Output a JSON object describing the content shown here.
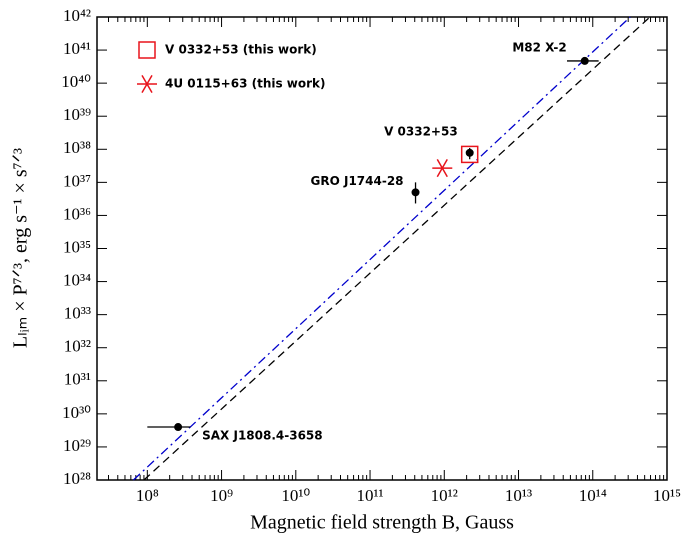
{
  "chart_data": {
    "type": "scatter",
    "x_label": "Magnetic field strength B, Gauss",
    "y_label": "Lₗᵢₘ × P⁷ᐟ³, erg s⁻¹ × s⁷ᐟ³",
    "log_x": true,
    "log_y": true,
    "xlim": [
      21000000.0,
      1000000000000000.0
    ],
    "ylim": [
      1e+28,
      1e+42
    ],
    "xticks": [
      {
        "value": 100000000.0,
        "label": "10⁸"
      },
      {
        "value": 1000000000.0,
        "label": "10⁹"
      },
      {
        "value": 10000000000.0,
        "label": "10¹⁰"
      },
      {
        "value": 100000000000.0,
        "label": "10¹¹"
      },
      {
        "value": 1000000000000.0,
        "label": "10¹²"
      },
      {
        "value": 10000000000000.0,
        "label": "10¹³"
      },
      {
        "value": 100000000000000.0,
        "label": "10¹⁴"
      },
      {
        "value": 1000000000000000.0,
        "label": "10¹⁵"
      }
    ],
    "yticks": [
      {
        "value": 1e+28,
        "label": "10²⁸"
      },
      {
        "value": 1e+29,
        "label": "10²⁹"
      },
      {
        "value": 1e+30,
        "label": "10³⁰"
      },
      {
        "value": 1e+31,
        "label": "10³¹"
      },
      {
        "value": 1e+32,
        "label": "10³²"
      },
      {
        "value": 1e+33,
        "label": "10³³"
      },
      {
        "value": 1e+34,
        "label": "10³⁴"
      },
      {
        "value": 1e+35,
        "label": "10³⁵"
      },
      {
        "value": 1e+36,
        "label": "10³⁶"
      },
      {
        "value": 1e+37,
        "label": "10³⁷"
      },
      {
        "value": 1e+38,
        "label": "10³⁸"
      },
      {
        "value": 1e+39,
        "label": "10³⁹"
      },
      {
        "value": 1e+40,
        "label": "10⁴⁰"
      },
      {
        "value": 1e+41,
        "label": "10⁴¹"
      },
      {
        "value": 1e+42,
        "label": "10⁴²"
      }
    ],
    "legend": "upper left",
    "points": [
      {
        "label": "SAX J1808.4-3658",
        "color": "#000000",
        "x": 260000000.0,
        "y": 4e+29,
        "x_low": 100000000.0,
        "x_high": 380000000.0
      },
      {
        "label": "GRO J1744-28",
        "color": "#000000",
        "x": 410000000000.0,
        "y": 5e+36,
        "y_low": 2.3e+36,
        "y_high": 1e+37
      },
      {
        "label": "V 0332+53",
        "color": "#000000",
        "x": 2200000000000.0,
        "y": 7.8e+37,
        "y_low": 5e+37,
        "y_high": 1.1e+38
      },
      {
        "label": "M82 X-2",
        "color": "#000000",
        "x": 78000000000000.0,
        "y": 4.7e+40,
        "x_low": 45000000000000.0,
        "x_high": 120000000000000.0
      }
    ],
    "series": [
      {
        "name": "V 0332+53 (this work)",
        "marker": "square",
        "color": "#e8141c",
        "x": [
          2200000000000.0
        ],
        "values": [
          7e+37
        ]
      },
      {
        "name": "4U 0115+63 (this work)",
        "marker": "star",
        "color": "#e8141c",
        "x": [
          940000000000.0
        ],
        "values": [
          2.7e+37
        ]
      }
    ],
    "lines": [
      {
        "style": "dashed",
        "color": "#000000",
        "x": [
          90000000.0,
          590000000000000.0
        ],
        "values": [
          1e+28,
          1e+42
        ]
      },
      {
        "style": "dashdot",
        "color": "#0000cc",
        "x": [
          65000000.0,
          320000000000000.0
        ],
        "values": [
          1e+28,
          1e+42
        ]
      }
    ]
  }
}
